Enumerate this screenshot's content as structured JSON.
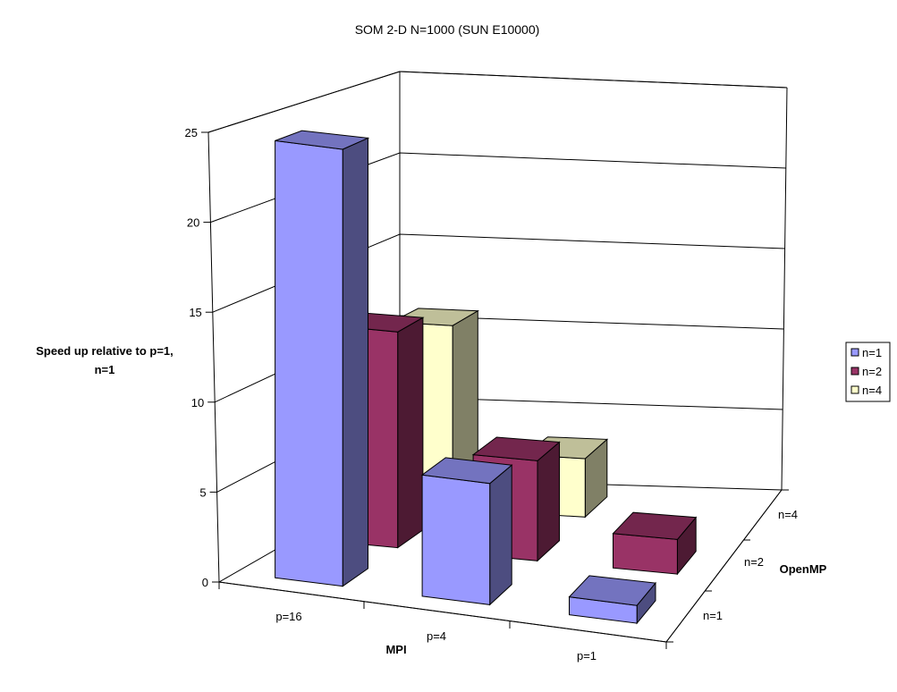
{
  "chart_data": {
    "type": "bar",
    "subtype": "3d-column",
    "title": "SOM 2-D N=1000 (SUN E10000)",
    "xlabel": "MPI",
    "ylabel_line1": "Speed up relative to p=1,",
    "ylabel_line2": "n=1",
    "depth_label": "OpenMP",
    "categories": [
      "p=16",
      "p=4",
      "p=1"
    ],
    "depth_categories": [
      "n=1",
      "n=2",
      "n=4"
    ],
    "ylim": [
      0,
      25
    ],
    "yticks": [
      "0",
      "5",
      "10",
      "15",
      "20",
      "25"
    ],
    "grid": true,
    "legend_position": "right",
    "series": [
      {
        "name": "n=1",
        "values": [
          24.5,
          6.8,
          1.0
        ],
        "color": "#9999ff"
      },
      {
        "name": "n=2",
        "values": [
          12.5,
          5.8,
          2.0
        ],
        "color": "#993366"
      },
      {
        "name": "n=4",
        "values": [
          11.0,
          3.5,
          0
        ],
        "color": "#ffffcc"
      }
    ],
    "legend": [
      "n=1",
      "n=2",
      "n=4"
    ]
  }
}
